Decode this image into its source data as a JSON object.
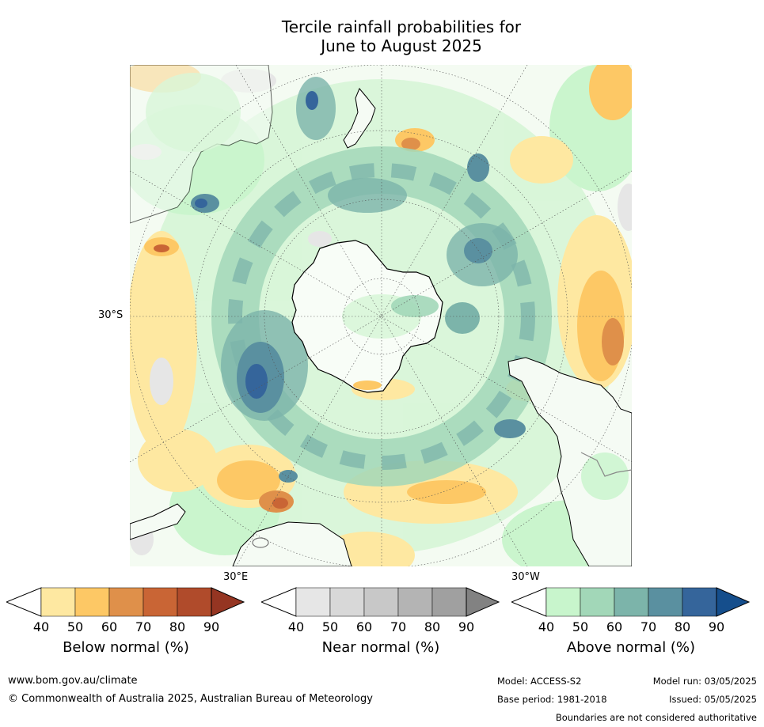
{
  "title": {
    "line1": "Tercile rainfall probabilities for",
    "line2": "June to August 2025"
  },
  "map": {
    "projection": "south-polar-stereographic",
    "labels": {
      "lat": "30°S",
      "lon_east": "30°E",
      "lon_west": "30°W"
    }
  },
  "legends": [
    {
      "id": "below",
      "label": "Below normal (%)",
      "ticks": [
        "40",
        "50",
        "60",
        "70",
        "80",
        "90"
      ],
      "colors": [
        "#ffffff",
        "#fee8a1",
        "#fdc865",
        "#df904a",
        "#c96535",
        "#b04b2b",
        "#953522"
      ]
    },
    {
      "id": "near",
      "label": "Near normal (%)",
      "ticks": [
        "40",
        "50",
        "60",
        "70",
        "80",
        "90"
      ],
      "colors": [
        "#ffffff",
        "#e6e6e6",
        "#d8d8d8",
        "#c8c8c8",
        "#b4b4b4",
        "#a0a0a0",
        "#828282"
      ]
    },
    {
      "id": "above",
      "label": "Above normal (%)",
      "ticks": [
        "40",
        "50",
        "60",
        "70",
        "80",
        "90"
      ],
      "colors": [
        "#ffffff",
        "#c8f5cc",
        "#a2d7b8",
        "#7cb4aa",
        "#5a90a0",
        "#35659b",
        "#154e8c"
      ]
    }
  ],
  "footer": {
    "url": "www.bom.gov.au/climate",
    "copyright": "© Commonwealth of Australia 2025, Australian Bureau of Meteorology",
    "model": "Model: ACCESS-S2",
    "base_period": "Base period: 1981-2018",
    "model_run": "Model run: 03/05/2025",
    "issued": "Issued: 05/05/2025",
    "disclaimer": "Boundaries are not considered authoritative"
  }
}
